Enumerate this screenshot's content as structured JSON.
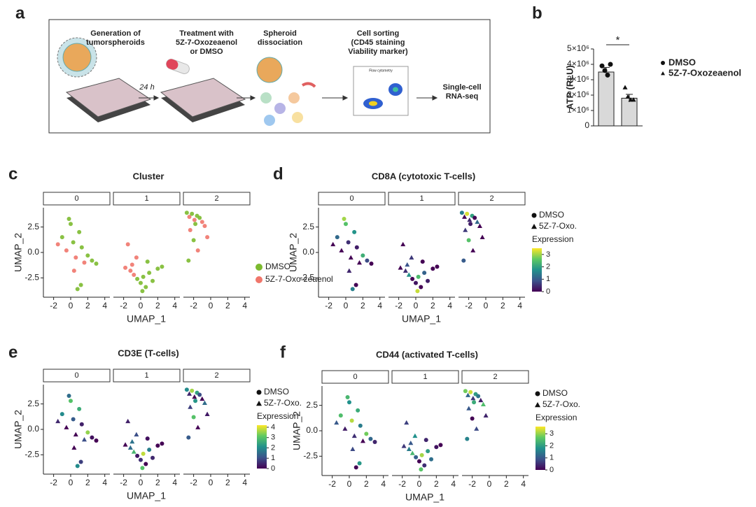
{
  "panel_labels": [
    "a",
    "b",
    "c",
    "d",
    "e",
    "f"
  ],
  "workflow": {
    "steps": [
      [
        "Generation of",
        "tumorspheroids"
      ],
      [
        "Treatment with",
        "5Z-7-Oxozeaenol",
        "or DMSO"
      ],
      [
        "Spheroid",
        "dissociation"
      ],
      [
        "Cell sorting",
        "(CD45 staining",
        "Viability marker)"
      ],
      [
        "Single-cell",
        "RNA-seq"
      ]
    ],
    "arrow_label": "24 h",
    "flow_title": "Flow cytometry"
  },
  "cells": [
    {
      "x": [
        -1.5,
        -1.0,
        -0.5,
        0,
        0.3,
        0.6,
        1.0,
        1.3,
        1.6,
        2.0,
        2.5,
        3.0,
        0.8,
        1.2,
        -0.2,
        0.4
      ],
      "y": [
        0.8,
        1.5,
        0.2,
        2.8,
        1.0,
        -0.5,
        2.0,
        0.5,
        -1.0,
        -0.3,
        -0.8,
        -1.1,
        -3.6,
        -3.2,
        3.3,
        -1.8
      ],
      "condition": [
        1,
        0,
        1,
        0,
        0,
        1,
        0,
        0,
        1,
        0,
        0,
        0,
        0,
        0,
        0,
        1
      ]
    },
    {
      "x": [
        -1.8,
        -1.2,
        -0.8,
        -0.4,
        0,
        0.3,
        0.6,
        1.0,
        1.4,
        2.0,
        -1.5,
        -0.5,
        0.2,
        2.5,
        -1.0,
        0.8
      ],
      "y": [
        -1.5,
        -1.8,
        -2.2,
        -2.6,
        -3.0,
        -2.4,
        -3.4,
        -2.0,
        -2.8,
        -1.6,
        0.8,
        -0.5,
        -3.8,
        -1.4,
        -1.2,
        -0.9
      ],
      "condition": [
        1,
        1,
        1,
        0,
        0,
        0,
        0,
        0,
        0,
        0,
        1,
        1,
        0,
        0,
        1,
        0
      ]
    },
    {
      "x": [
        -2.8,
        -2.5,
        -2.2,
        -1.9,
        -1.6,
        -1.3,
        -1.0,
        -0.7,
        -2.4,
        -2.0,
        -1.5,
        -2.6,
        -0.4,
        -1.8
      ],
      "y": [
        3.9,
        3.5,
        3.8,
        3.2,
        3.6,
        3.4,
        3.0,
        2.6,
        2.2,
        1.2,
        0.2,
        -0.8,
        1.5,
        2.8
      ],
      "condition": [
        0,
        1,
        0,
        1,
        0,
        0,
        1,
        1,
        1,
        0,
        1,
        0,
        1,
        0
      ]
    }
  ],
  "chart_data": [
    {
      "type": "bar",
      "ylabel": "ATP (RLU)",
      "annotation": "*",
      "categories": [
        "DMSO",
        "5Z-7-Oxozeaenol"
      ],
      "values": [
        3500000,
        1800000
      ],
      "errors": [
        300000,
        250000
      ],
      "points": [
        [
          3900000,
          3600000,
          3300000,
          4000000
        ],
        [
          2500000,
          1900000,
          1700000,
          1700000
        ]
      ],
      "color": "#d9d9d9",
      "ylim": [
        0,
        5000000
      ],
      "yticks": [
        0,
        {
          "value": 1000000,
          "label": "1×10⁶"
        },
        {
          "value": 2000000,
          "label": "2×10⁶"
        },
        {
          "value": 3000000,
          "label": "3×10⁶"
        },
        {
          "value": 4000000,
          "label": "4×10⁶"
        },
        {
          "value": 5000000,
          "label": "5×10⁶"
        }
      ]
    },
    {
      "type": "scatter",
      "title": "Cluster",
      "facets": [
        "0",
        "1",
        "2"
      ],
      "xlabel": "UMAP_1",
      "ylabel": "UMAP_2",
      "xlim": [
        -3.2,
        4.6
      ],
      "ylim": [
        -4.4,
        4.4
      ],
      "xticks": [
        -2,
        0,
        2,
        4
      ],
      "yticks": [
        -2.5,
        {
          "value": 0,
          "label": "0.0"
        },
        2.5
      ],
      "series": [
        {
          "name": "DMSO",
          "color": "#7cba2f"
        },
        {
          "name": "5Z-7-Oxo-zeaenol",
          "color": "#f0766b"
        }
      ]
    },
    {
      "type": "expression",
      "title": "CD8A (cytotoxic T-cells)",
      "facets": [
        "0",
        "1",
        "2"
      ],
      "xlabel": "UMAP_1",
      "ylabel": "UMAP_2",
      "xlim": [
        -3.2,
        4.6
      ],
      "ylim": [
        -4.4,
        4.4
      ],
      "xticks": [
        -2,
        0,
        2,
        4
      ],
      "yticks": [
        -2.5,
        {
          "value": 0,
          "label": "0.0"
        },
        2.5
      ],
      "series": [
        {
          "name": "DMSO"
        },
        {
          "name": "5Z-7-Oxo."
        }
      ],
      "colorbar_title": "Expression",
      "clim": [
        0,
        3.5
      ],
      "cticks": [
        0,
        1,
        2,
        3
      ],
      "expression": [
        [
          0,
          1.2,
          0,
          2.5,
          0.5,
          0,
          1.8,
          0.3,
          0,
          2.2,
          0.8,
          0,
          1.5,
          0,
          3,
          0.4
        ],
        [
          0,
          0.5,
          1.8,
          0,
          0.2,
          2.4,
          0,
          1.1,
          0.3,
          0,
          0,
          0.6,
          3.2,
          0,
          0.9,
          0
        ],
        [
          1.5,
          0,
          3.3,
          0.4,
          2,
          0,
          1.2,
          0,
          0.6,
          2.5,
          0,
          1,
          0,
          0.3
        ]
      ]
    },
    {
      "type": "expression",
      "title": "CD3E (T-cells)",
      "facets": [
        "0",
        "1",
        "2"
      ],
      "xlabel": "UMAP_1",
      "ylabel": "UMAP_2",
      "xlim": [
        -3.2,
        4.6
      ],
      "ylim": [
        -4.4,
        4.4
      ],
      "xticks": [
        -2,
        0,
        2,
        4
      ],
      "yticks": [
        -2.5,
        {
          "value": 0,
          "label": "0.0"
        },
        2.5
      ],
      "series": [
        {
          "name": "DMSO"
        },
        {
          "name": "5Z-7-Oxo."
        }
      ],
      "colorbar_title": "Expression",
      "clim": [
        0,
        4.2
      ],
      "cticks": [
        0,
        1,
        2,
        3,
        4
      ],
      "expression": [
        [
          0.5,
          2,
          0,
          3,
          1.2,
          0,
          2.6,
          0.4,
          1,
          3.5,
          0.2,
          0,
          2,
          0.8,
          1.5,
          0
        ],
        [
          0,
          1.5,
          2.8,
          0.3,
          0.6,
          3.8,
          0,
          1.8,
          0.5,
          0,
          0.4,
          1,
          3,
          0,
          1.6,
          0.2
        ],
        [
          2,
          0.5,
          3.6,
          0,
          2.4,
          1,
          0,
          1.5,
          0.8,
          3,
          0,
          1.2,
          0.3,
          2.2
        ]
      ]
    },
    {
      "type": "expression",
      "title": "CD44 (activated T-cells)",
      "facets": [
        "0",
        "1",
        "2"
      ],
      "xlabel": "UMAP_1",
      "ylabel": "UMAP_2",
      "xlim": [
        -3.2,
        4.6
      ],
      "ylim": [
        -4.4,
        4.4
      ],
      "xticks": [
        -2,
        0,
        2,
        4
      ],
      "yticks": [
        -2.5,
        {
          "value": 0,
          "label": "0.0"
        },
        2.5
      ],
      "series": [
        {
          "name": "DMSO"
        },
        {
          "name": "5Z-7-Oxo."
        }
      ],
      "colorbar_title": "Expression",
      "clim": [
        0,
        3.6
      ],
      "cticks": [
        0,
        1,
        2,
        3
      ],
      "expression": [
        [
          1,
          2.5,
          0.3,
          1.8,
          3.2,
          0.5,
          2.2,
          1.5,
          0,
          2.8,
          1.2,
          0.4,
          0,
          1.9,
          2.4,
          0.8
        ],
        [
          0.6,
          1.5,
          2.4,
          1.1,
          0,
          3.1,
          0.5,
          2,
          1.3,
          0.2,
          0.7,
          1.8,
          2.6,
          0,
          1,
          0.4
        ],
        [
          2.8,
          1.2,
          3.3,
          0.6,
          2,
          1.4,
          0.3,
          2.5,
          1,
          0,
          0.8,
          1.6,
          0.4,
          2.2
        ]
      ]
    }
  ]
}
